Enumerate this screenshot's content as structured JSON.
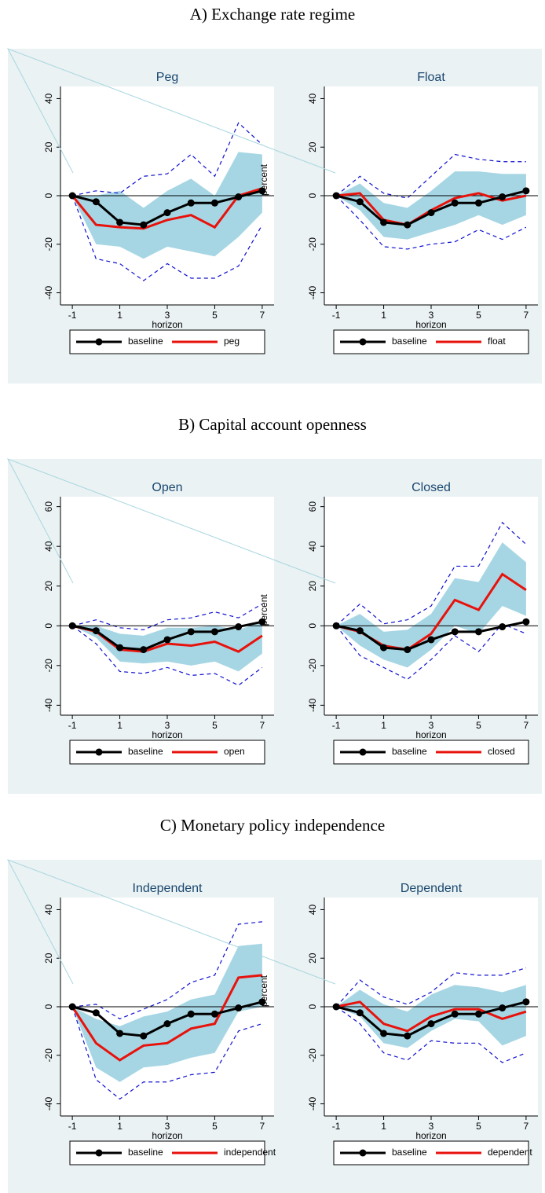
{
  "section_titles": [
    "A) Exchange rate regime",
    "B) Capital account openness",
    "C) Monetary policy independence"
  ],
  "chart_data": [
    {
      "type": "line",
      "title": "Peg",
      "x": [
        -1,
        0,
        1,
        2,
        3,
        4,
        5,
        6,
        7
      ],
      "xlim": [
        -1.5,
        7.5
      ],
      "xticks": [
        -1,
        1,
        3,
        5,
        7
      ],
      "xlabel": "horizon",
      "ylabel": "percent",
      "ylim": [
        -45,
        45
      ],
      "yticks": [
        -40,
        -20,
        0,
        20,
        40
      ],
      "yline": 0,
      "legend": "bottom",
      "series": [
        {
          "name": "baseline",
          "color": "#000000",
          "marker": true,
          "values": [
            0,
            -2.5,
            -11,
            -12,
            -7,
            -3,
            -3,
            -0.5,
            2
          ]
        },
        {
          "name": "peg",
          "color": "#e8120c",
          "marker": false,
          "values": [
            0,
            -12,
            -13,
            -13.5,
            -10,
            -8,
            -13,
            0,
            3
          ]
        }
      ],
      "band": {
        "color": "#a6d6e4",
        "lower": [
          0,
          -20,
          -21,
          -26,
          -21,
          -23,
          -25,
          -17,
          -7
        ],
        "upper": [
          0,
          0,
          2,
          -5,
          2,
          7,
          0,
          18,
          17
        ]
      },
      "dashed": {
        "color": "#1010d0",
        "lower": [
          0,
          -26,
          -28,
          -35,
          -28,
          -34,
          -34,
          -29,
          -12
        ],
        "upper": [
          0,
          2,
          1,
          8,
          9,
          17,
          8,
          30,
          21
        ]
      }
    },
    {
      "type": "line",
      "title": "Float",
      "x": [
        -1,
        0,
        1,
        2,
        3,
        4,
        5,
        6,
        7
      ],
      "xlim": [
        -1.5,
        7.5
      ],
      "xticks": [
        -1,
        1,
        3,
        5,
        7
      ],
      "xlabel": "horizon",
      "ylim": [
        -45,
        45
      ],
      "yticks": [
        -40,
        -20,
        0,
        20,
        40
      ],
      "yline": 0,
      "legend": "bottom",
      "series": [
        {
          "name": "baseline",
          "color": "#000000",
          "marker": true,
          "values": [
            0,
            -2.5,
            -11,
            -12,
            -7,
            -3,
            -3,
            -0.5,
            2
          ]
        },
        {
          "name": "float",
          "color": "#e8120c",
          "marker": false,
          "values": [
            0,
            1,
            -10,
            -12,
            -6,
            -1,
            1,
            -2,
            0
          ]
        }
      ],
      "band": {
        "color": "#a6d6e4",
        "lower": [
          0,
          -6,
          -17,
          -18,
          -15,
          -12,
          -8,
          -12,
          -8
        ],
        "upper": [
          0,
          5,
          -3,
          -5,
          2,
          10,
          10,
          9,
          9
        ]
      },
      "dashed": {
        "color": "#1010d0",
        "lower": [
          0,
          -10,
          -21,
          -22,
          -20,
          -19,
          -14,
          -18,
          -13
        ],
        "upper": [
          0,
          8,
          1,
          -1,
          8,
          17,
          15,
          14,
          14
        ]
      }
    },
    {
      "type": "line",
      "title": "Open",
      "x": [
        -1,
        0,
        1,
        2,
        3,
        4,
        5,
        6,
        7
      ],
      "xlim": [
        -1.5,
        7.5
      ],
      "xticks": [
        -1,
        1,
        3,
        5,
        7
      ],
      "xlabel": "horizon",
      "ylabel": "percent",
      "ylim": [
        -45,
        65
      ],
      "yticks": [
        -40,
        -20,
        0,
        20,
        40,
        60
      ],
      "yline": 0,
      "legend": "bottom",
      "series": [
        {
          "name": "baseline",
          "color": "#000000",
          "marker": true,
          "values": [
            0,
            -2.5,
            -11,
            -12,
            -7,
            -3,
            -3,
            -0.5,
            2
          ]
        },
        {
          "name": "open",
          "color": "#e8120c",
          "marker": false,
          "values": [
            0,
            -3,
            -12,
            -13,
            -9,
            -10,
            -8,
            -13,
            -5
          ]
        }
      ],
      "band": {
        "color": "#a6d6e4",
        "lower": [
          0,
          -6,
          -18,
          -19,
          -18,
          -20,
          -18,
          -23,
          -14
        ],
        "upper": [
          0,
          0,
          -4,
          -5,
          -1,
          -1,
          0,
          -2,
          2
        ]
      },
      "dashed": {
        "color": "#1010d0",
        "lower": [
          0,
          -9,
          -23,
          -24,
          -21,
          -25,
          -24,
          -30,
          -21
        ],
        "upper": [
          0,
          3,
          -1,
          -2,
          3,
          4,
          7,
          4,
          11
        ]
      }
    },
    {
      "type": "line",
      "title": "Closed",
      "x": [
        -1,
        0,
        1,
        2,
        3,
        4,
        5,
        6,
        7
      ],
      "xlim": [
        -1.5,
        7.5
      ],
      "xticks": [
        -1,
        1,
        3,
        5,
        7
      ],
      "xlabel": "horizon",
      "ylim": [
        -45,
        65
      ],
      "yticks": [
        -40,
        -20,
        0,
        20,
        40,
        60
      ],
      "yline": 0,
      "legend": "bottom",
      "series": [
        {
          "name": "baseline",
          "color": "#000000",
          "marker": true,
          "values": [
            0,
            -2.5,
            -11,
            -12,
            -7,
            -3,
            -3,
            -0.5,
            2
          ]
        },
        {
          "name": "closed",
          "color": "#e8120c",
          "marker": false,
          "values": [
            0,
            -3,
            -10,
            -12,
            -4,
            13,
            8,
            26,
            18
          ]
        }
      ],
      "band": {
        "color": "#a6d6e4",
        "lower": [
          0,
          -10,
          -17,
          -21,
          -12,
          0,
          -4,
          10,
          5
        ],
        "upper": [
          0,
          6,
          -3,
          -2,
          6,
          24,
          22,
          42,
          32
        ]
      },
      "dashed": {
        "color": "#1010d0",
        "lower": [
          0,
          -15,
          -21,
          -27,
          -17,
          -5,
          -13,
          1,
          -4
        ],
        "upper": [
          0,
          11,
          1,
          3,
          10,
          30,
          30,
          52,
          41
        ]
      }
    },
    {
      "type": "line",
      "title": "Independent",
      "x": [
        -1,
        0,
        1,
        2,
        3,
        4,
        5,
        6,
        7
      ],
      "xlim": [
        -1.5,
        7.5
      ],
      "xticks": [
        -1,
        1,
        3,
        5,
        7
      ],
      "xlabel": "horizon",
      "ylabel": "percent",
      "ylim": [
        -45,
        45
      ],
      "yticks": [
        -40,
        -20,
        0,
        20,
        40
      ],
      "yline": 0,
      "legend": "bottom",
      "series": [
        {
          "name": "baseline",
          "color": "#000000",
          "marker": true,
          "values": [
            0,
            -2.5,
            -11,
            -12,
            -7,
            -3,
            -3,
            -0.5,
            2
          ]
        },
        {
          "name": "independent",
          "color": "#e8120c",
          "marker": false,
          "values": [
            0,
            -15,
            -22,
            -16,
            -15,
            -9,
            -7,
            12,
            13
          ]
        }
      ],
      "band": {
        "color": "#a6d6e4",
        "lower": [
          0,
          -25,
          -31,
          -25,
          -24,
          -21,
          -19,
          -2,
          0
        ],
        "upper": [
          0,
          -5,
          -8,
          -4,
          -2,
          3,
          5,
          25,
          26
        ]
      },
      "dashed": {
        "color": "#1010d0",
        "lower": [
          0,
          -30,
          -38,
          -31,
          -31,
          -28,
          -27,
          -10,
          -7
        ],
        "upper": [
          0,
          1,
          -5,
          -1,
          3,
          10,
          13,
          34,
          35
        ]
      }
    },
    {
      "type": "line",
      "title": "Dependent",
      "x": [
        -1,
        0,
        1,
        2,
        3,
        4,
        5,
        6,
        7
      ],
      "xlim": [
        -1.5,
        7.5
      ],
      "xticks": [
        -1,
        1,
        3,
        5,
        7
      ],
      "xlabel": "horizon",
      "ylim": [
        -45,
        45
      ],
      "yticks": [
        -40,
        -20,
        0,
        20,
        40
      ],
      "yline": 0,
      "legend": "bottom",
      "series": [
        {
          "name": "baseline",
          "color": "#000000",
          "marker": true,
          "values": [
            0,
            -2.5,
            -11,
            -12,
            -7,
            -3,
            -3,
            -0.5,
            2
          ]
        },
        {
          "name": "dependent",
          "color": "#e8120c",
          "marker": false,
          "values": [
            0,
            2,
            -7,
            -10,
            -4,
            -1,
            -1,
            -5,
            -2
          ]
        }
      ],
      "band": {
        "color": "#a6d6e4",
        "lower": [
          0,
          -4,
          -15,
          -17,
          -10,
          -5,
          -6,
          -16,
          -12
        ],
        "upper": [
          0,
          7,
          1,
          -2,
          5,
          9,
          8,
          6,
          9
        ]
      },
      "dashed": {
        "color": "#1010d0",
        "lower": [
          0,
          -7,
          -19,
          -22,
          -14,
          -15,
          -15,
          -23,
          -19
        ],
        "upper": [
          0,
          11,
          4,
          1,
          6,
          14,
          13,
          13,
          16
        ]
      }
    }
  ]
}
